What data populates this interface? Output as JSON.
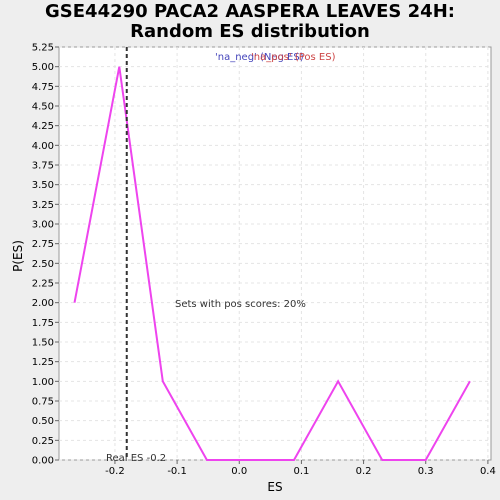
{
  "chart_data": {
    "type": "line",
    "title_lines": [
      "GSE44290 PACA2 AASPERA LEAVES 24H:",
      "Random ES distribution"
    ],
    "xlabel": "ES",
    "ylabel": "P(ES)",
    "xlim": [
      -0.29,
      0.405
    ],
    "ylim": [
      0,
      5.25
    ],
    "x_ticks": [
      -0.2,
      -0.1,
      0.0,
      0.1,
      0.2,
      0.3,
      0.4
    ],
    "x_tick_labels": [
      "-0.2",
      "-0.1",
      "0.0",
      "0.1",
      "0.2",
      "0.3",
      "0.4"
    ],
    "y_ticks": [
      0,
      0.25,
      0.5,
      0.75,
      1.0,
      1.25,
      1.5,
      1.75,
      2.0,
      2.25,
      2.5,
      2.75,
      3.0,
      3.25,
      3.5,
      3.75,
      4.0,
      4.25,
      4.5,
      4.75,
      5.0,
      5.25
    ],
    "y_tick_labels": [
      "0.00",
      "0.25",
      "0.50",
      "0.75",
      "1.00",
      "1.25",
      "1.50",
      "1.75",
      "2.00",
      "2.25",
      "2.50",
      "2.75",
      "3.00",
      "3.25",
      "3.50",
      "3.75",
      "4.00",
      "4.25",
      "4.50",
      "4.75",
      "5.00",
      "5.25"
    ],
    "grid": true,
    "series": [
      {
        "color": "#ee44ee",
        "x": [
          -0.265,
          -0.193,
          -0.123,
          -0.052,
          0.018,
          0.088,
          0.159,
          0.23,
          0.3,
          0.371
        ],
        "y": [
          2.0,
          5.0,
          1.0,
          0.0,
          0.0,
          0.0,
          1.0,
          0.0,
          0.0,
          1.0
        ]
      }
    ],
    "real_es": {
      "x": -0.181,
      "label": "Real ES -0.2",
      "color": "#333333"
    },
    "legend": {
      "neg_label": "'na_neg' (Neg ES)",
      "pos_label": "'na_pos' (Pos ES)",
      "neg_color": "#4444bb",
      "pos_color": "#cc4444"
    },
    "annotation": "Sets with pos scores: 20%"
  }
}
